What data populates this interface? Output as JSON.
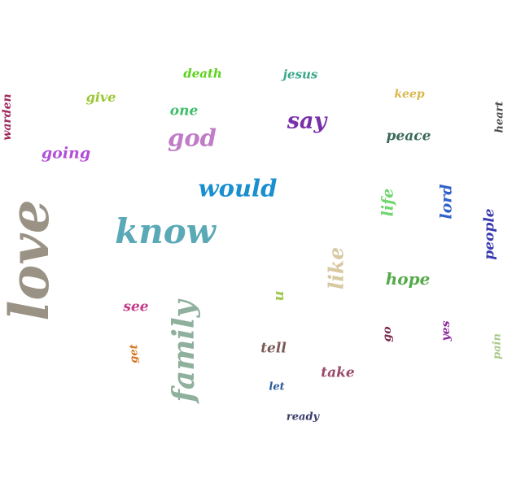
{
  "words": [
    {
      "text": "love",
      "color": "#9a9285",
      "vertical": true
    },
    {
      "text": "know",
      "color": "#5aa9b7",
      "vertical": false
    },
    {
      "text": "family",
      "color": "#8fb09d",
      "vertical": true
    },
    {
      "text": "would",
      "color": "#1a8fd0",
      "vertical": false
    },
    {
      "text": "god",
      "color": "#c07cc7",
      "vertical": false
    },
    {
      "text": "say",
      "color": "#7a2faa",
      "vertical": false
    },
    {
      "text": "like",
      "color": "#d8c9a3",
      "vertical": true
    },
    {
      "text": "hope",
      "color": "#55aa4a",
      "vertical": false
    },
    {
      "text": "peace",
      "color": "#3a6a5a",
      "vertical": false
    },
    {
      "text": "going",
      "color": "#b24fd6",
      "vertical": false
    },
    {
      "text": "lord",
      "color": "#2f62c8",
      "vertical": true
    },
    {
      "text": "people",
      "color": "#3a3ab0",
      "vertical": true
    },
    {
      "text": "life",
      "color": "#6fd66f",
      "vertical": true
    },
    {
      "text": "one",
      "color": "#3fbf6a",
      "vertical": false
    },
    {
      "text": "tell",
      "color": "#7a5a55",
      "vertical": false
    },
    {
      "text": "see",
      "color": "#c23a8a",
      "vertical": false
    },
    {
      "text": "take",
      "color": "#9a4a6a",
      "vertical": false
    },
    {
      "text": "u",
      "color": "#a0c850",
      "vertical": true
    },
    {
      "text": "give",
      "color": "#9ac832",
      "vertical": false
    },
    {
      "text": "death",
      "color": "#5ad21a",
      "vertical": false
    },
    {
      "text": "jesus",
      "color": "#3aa88a",
      "vertical": false
    },
    {
      "text": "keep",
      "color": "#d8b84a",
      "vertical": false
    },
    {
      "text": "warden",
      "color": "#a02a5a",
      "vertical": true
    },
    {
      "text": "heart",
      "color": "#4a4a4a",
      "vertical": true
    },
    {
      "text": "yes",
      "color": "#8a2a9a",
      "vertical": true
    },
    {
      "text": "go",
      "color": "#7a2a4a",
      "vertical": true
    },
    {
      "text": "pain",
      "color": "#a8c88a",
      "vertical": true
    },
    {
      "text": "get",
      "color": "#d8721a",
      "vertical": true
    },
    {
      "text": "let",
      "color": "#2a5a9a",
      "vertical": false
    },
    {
      "text": "ready",
      "color": "#3a3a6a",
      "vertical": false
    }
  ]
}
